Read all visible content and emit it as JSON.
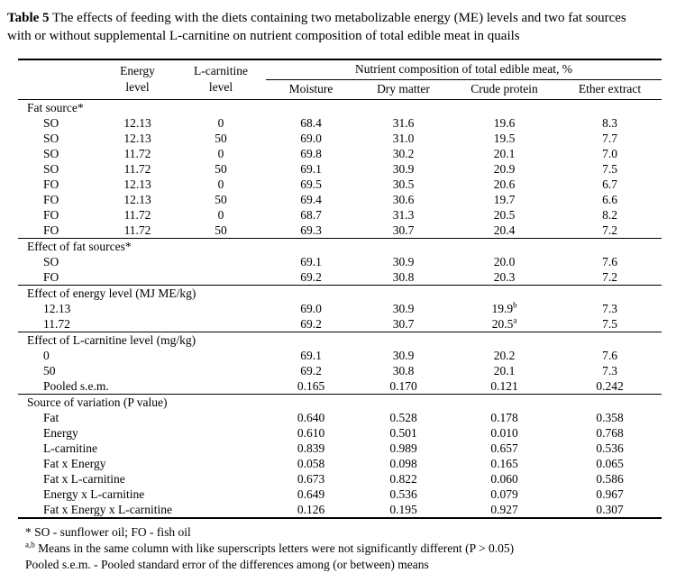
{
  "title": {
    "label": "Table 5",
    "text": "The effects of feeding with the diets containing two metabolizable energy (ME) levels and two fat sources with or without supplemental L-carnitine on nutrient composition of total edible meat in quails"
  },
  "colors": {
    "text": "#000000",
    "background": "#ffffff",
    "rules": "#000000"
  },
  "table": {
    "headers": {
      "energy": {
        "line1": "Energy",
        "line2": "level"
      },
      "carnitine": {
        "line1": "L-carnitine",
        "line2": "level"
      },
      "span": "Nutrient composition of total edible meat, %",
      "nutrients": [
        "Moisture",
        "Dry matter",
        "Crude protein",
        "Ether extract"
      ]
    },
    "sections": [
      {
        "header": "Fat source*",
        "rows": [
          {
            "label": "SO",
            "energy": "12.13",
            "carnitine": "0",
            "values": [
              "68.4",
              "31.6",
              "19.6",
              "8.3"
            ]
          },
          {
            "label": "SO",
            "energy": "12.13",
            "carnitine": "50",
            "values": [
              "69.0",
              "31.0",
              "19.5",
              "7.7"
            ]
          },
          {
            "label": "SO",
            "energy": "11.72",
            "carnitine": "0",
            "values": [
              "69.8",
              "30.2",
              "20.1",
              "7.0"
            ]
          },
          {
            "label": "SO",
            "energy": "11.72",
            "carnitine": "50",
            "values": [
              "69.1",
              "30.9",
              "20.9",
              "7.5"
            ]
          },
          {
            "label": "FO",
            "energy": "12.13",
            "carnitine": "0",
            "values": [
              "69.5",
              "30.5",
              "20.6",
              "6.7"
            ]
          },
          {
            "label": "FO",
            "energy": "12.13",
            "carnitine": "50",
            "values": [
              "69.4",
              "30.6",
              "19.7",
              "6.6"
            ]
          },
          {
            "label": "FO",
            "energy": "11.72",
            "carnitine": "0",
            "values": [
              "68.7",
              "31.3",
              "20.5",
              "8.2"
            ]
          },
          {
            "label": "FO",
            "energy": "11.72",
            "carnitine": "50",
            "values": [
              "69.3",
              "30.7",
              "20.4",
              "7.2"
            ]
          }
        ]
      },
      {
        "header": "Effect of fat sources*",
        "rows": [
          {
            "label": "SO",
            "values": [
              "69.1",
              "30.9",
              "20.0",
              "7.6"
            ]
          },
          {
            "label": "FO",
            "values": [
              "69.2",
              "30.8",
              "20.3",
              "7.2"
            ]
          }
        ]
      },
      {
        "header": "Effect of energy level (MJ ME/kg)",
        "rows": [
          {
            "label": "12.13",
            "values": [
              "69.0",
              "30.9",
              "19.9^b",
              "7.3"
            ]
          },
          {
            "label": "11.72",
            "values": [
              "69.2",
              "30.7",
              "20.5^a",
              "7.5"
            ]
          }
        ]
      },
      {
        "header": "Effect of L-carnitine level (mg/kg)",
        "rows": [
          {
            "label": "0",
            "values": [
              "69.1",
              "30.9",
              "20.2",
              "7.6"
            ]
          },
          {
            "label": "50",
            "values": [
              "69.2",
              "30.8",
              "20.1",
              "7.3"
            ]
          },
          {
            "label": "Pooled s.e.m.",
            "values": [
              "0.165",
              "0.170",
              "0.121",
              "0.242"
            ]
          }
        ]
      },
      {
        "header": "Source of variation (P value)",
        "rows": [
          {
            "label": "Fat",
            "values": [
              "0.640",
              "0.528",
              "0.178",
              "0.358"
            ]
          },
          {
            "label": "Energy",
            "values": [
              "0.610",
              "0.501",
              "0.010",
              "0.768"
            ]
          },
          {
            "label": "L-carnitine",
            "values": [
              "0.839",
              "0.989",
              "0.657",
              "0.536"
            ]
          },
          {
            "label": "Fat x Energy",
            "values": [
              "0.058",
              "0.098",
              "0.165",
              "0.065"
            ]
          },
          {
            "label": "Fat x L-carnitine",
            "values": [
              "0.673",
              "0.822",
              "0.060",
              "0.586"
            ]
          },
          {
            "label": "Energy x L-carnitine",
            "values": [
              "0.649",
              "0.536",
              "0.079",
              "0.967"
            ]
          },
          {
            "label": "Fat x Energy x L-carnitine",
            "values": [
              "0.126",
              "0.195",
              "0.927",
              "0.307"
            ]
          }
        ]
      }
    ]
  },
  "footnotes": {
    "line1": "* SO - sunflower oil; FO - fish oil",
    "line2_sup": "a,b",
    "line2": "Means in the same column with like superscripts letters were not significantly different (P > 0.05)",
    "line3": "Pooled s.e.m. - Pooled standard error of the differences among (or between) means"
  }
}
